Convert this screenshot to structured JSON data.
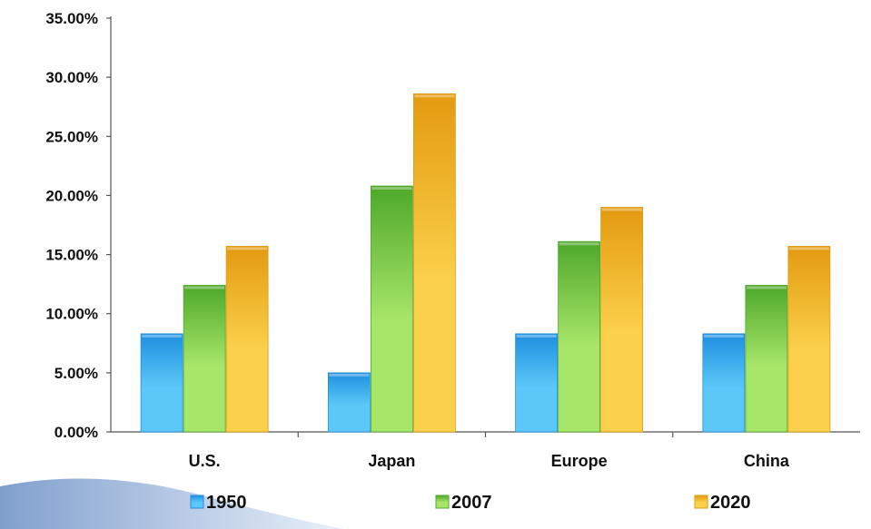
{
  "chart_data": {
    "type": "bar",
    "categories": [
      "U.S.",
      "Japan",
      "Europe",
      "China"
    ],
    "series": [
      {
        "name": "1950",
        "values": [
          8.3,
          5.0,
          8.3,
          8.3
        ]
      },
      {
        "name": "2007",
        "values": [
          12.4,
          20.8,
          16.1,
          12.4
        ]
      },
      {
        "name": "2020",
        "values": [
          15.7,
          28.6,
          19.0,
          15.7
        ]
      }
    ],
    "ylim": [
      0,
      35
    ],
    "yticks": [
      0,
      5,
      10,
      15,
      20,
      25,
      30,
      35
    ],
    "ytick_labels": [
      "0.00%",
      "5.00%",
      "10.00%",
      "15.00%",
      "20.00%",
      "25.00%",
      "30.00%",
      "35.00%"
    ],
    "title": "",
    "xlabel": "",
    "ylabel": "",
    "grid": false,
    "legend_position": "bottom",
    "colors": {
      "1950": [
        "#5cc8f8",
        "#1f8fe0"
      ],
      "2007": [
        "#a8e66a",
        "#4ea82a"
      ],
      "2020": [
        "#fbd04a",
        "#e39a10"
      ]
    }
  }
}
